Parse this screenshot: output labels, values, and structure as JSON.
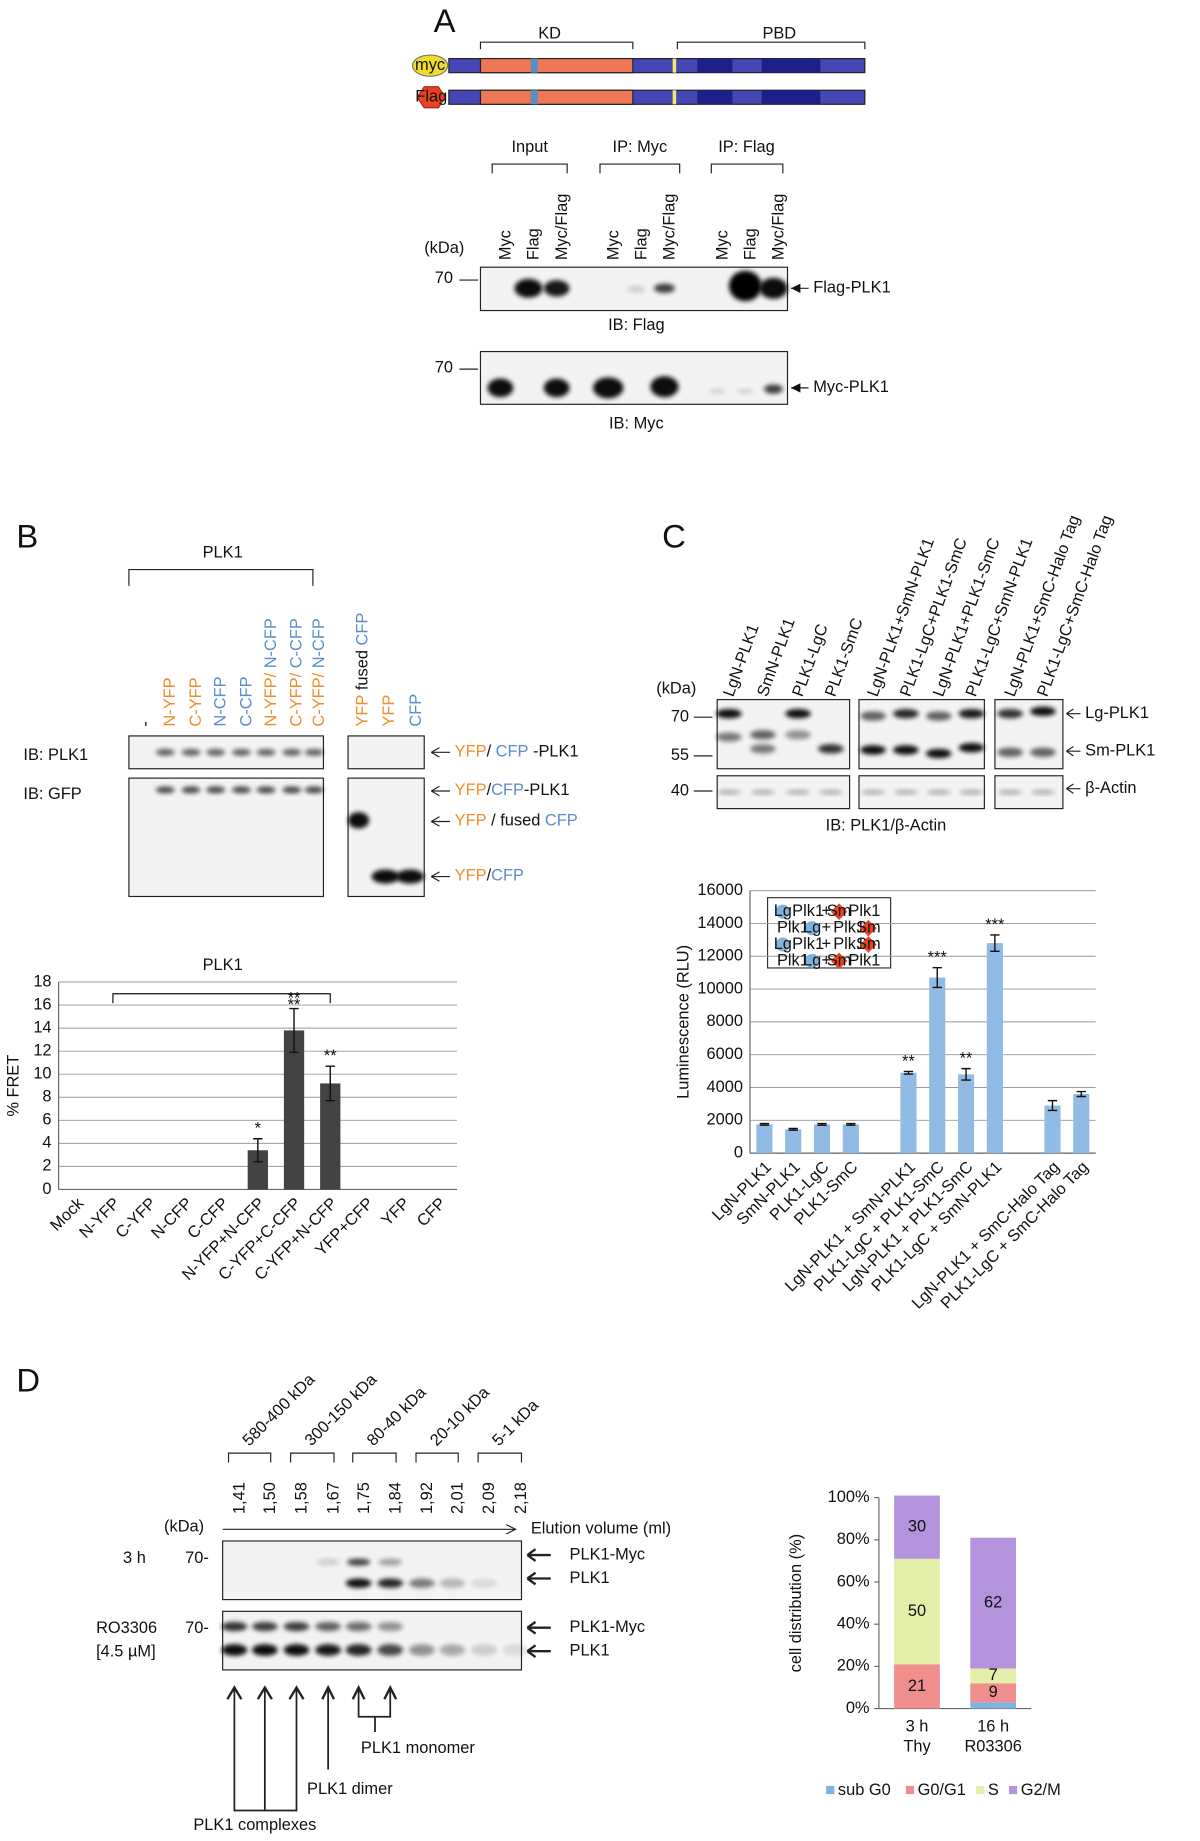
{
  "panel_a": {
    "label": "A",
    "domains": {
      "kd": "KD",
      "pbd": "PBD"
    },
    "tags": [
      "myc",
      "Flag"
    ],
    "groups": [
      "Input",
      "IP: Myc",
      "IP: Flag"
    ],
    "lanes": [
      "Myc",
      "Flag",
      "Myc/Flag",
      "Myc",
      "Flag",
      "Myc/Flag",
      "Myc",
      "Flag",
      "Myc/Flag"
    ],
    "kda": "(kDa)",
    "markers": [
      "70",
      "70"
    ],
    "bands": [
      "Flag-PLK1",
      "Myc-PLK1"
    ],
    "blots": [
      "IB: Flag",
      "IB: Myc"
    ]
  },
  "panel_b": {
    "label": "B",
    "group": "PLK1",
    "lanes": [
      [
        "-"
      ],
      [
        "N-YFP"
      ],
      [
        "C-YFP"
      ],
      [
        "N-CFP"
      ],
      [
        "C-CFP"
      ],
      [
        "N-YFP/",
        " N-CFP"
      ],
      [
        "C-YFP/",
        " C-CFP"
      ],
      [
        "C-YFP/",
        " N-CFP"
      ]
    ],
    "control_lanes": [
      [
        "YFP",
        " fused ",
        "CFP"
      ],
      [
        "YFP"
      ],
      [
        "CFP"
      ]
    ],
    "blots": [
      "IB: PLK1",
      "IB: GFP"
    ],
    "bands": [
      [
        "YFP",
        "/",
        " CFP",
        " -PLK1"
      ],
      [
        "YFP",
        "/",
        "CFP",
        "-PLK1"
      ],
      [
        "YFP",
        " / ",
        "fused ",
        "CFP"
      ],
      [
        "YFP",
        "/",
        "CFP"
      ]
    ]
  },
  "panel_c": {
    "label": "C",
    "lanes": [
      "LgN-PLK1",
      "SmN-PLK1",
      "PLK1-LgC",
      "PLK1-SmC",
      "LgN-PLK1+SmN-PLK1",
      "PLK1-LgC+PLK1-SmC",
      "LgN-PLK1+PLK1-SmC",
      "PLK1-LgC+SmN-PLK1",
      "LgN-PLK1+SmC-Halo Tag",
      "PLK1-LgC+SmC-Halo Tag"
    ],
    "kda": "(kDa)",
    "markers": [
      "70",
      "55",
      "40"
    ],
    "bands": [
      "Lg-PLK1",
      "Sm-PLK1",
      "β-Actin"
    ],
    "blot": "IB: PLK1/β-Actin",
    "inset": [
      [
        "Lg",
        "Plk1",
        "+",
        "Sm",
        "Plk1"
      ],
      [
        "Plk1",
        "Lg",
        "+",
        "Plk1",
        "Sm"
      ],
      [
        "Lg",
        "Plk1",
        "+",
        "Plk1",
        "Sm"
      ],
      [
        "Plk1",
        "Lg",
        "+",
        "Sm",
        "Plk1"
      ]
    ]
  },
  "panel_d": {
    "label": "D",
    "ranges": [
      "580-400 kDa",
      "300-150 kDa",
      "80-40 kDa",
      "20-10 kDa",
      "5-1 kDa"
    ],
    "fractions": [
      "1,41",
      "1,50",
      "1,58",
      "1,67",
      "1,75",
      "1,84",
      "1,92",
      "2,01",
      "2,09",
      "2,18"
    ],
    "kda": "(kDa)",
    "axis": "Elution volume (ml)",
    "rows": [
      [
        "3 h"
      ],
      [
        "RO3306",
        "[4.5 µM]"
      ]
    ],
    "markers": [
      "70-",
      "70-"
    ],
    "bands": [
      "PLK1-Myc",
      "PLK1",
      "PLK1-Myc",
      "PLK1"
    ],
    "annotations": [
      "PLK1 monomer",
      "PLK1 dimer",
      "PLK1 complexes"
    ]
  },
  "chart_data": [
    {
      "type": "bar",
      "title": "PLK1",
      "ylabel": "% FRET",
      "categories": [
        "Mock",
        "N-YFP",
        "C-YFP",
        "N-CFP",
        "C-CFP",
        "N-YFP+N-CFP",
        "C-YFP+C-CFP",
        "C-YFP+N-CFP",
        "YFP+CFP",
        "YFP",
        "CFP"
      ],
      "values": [
        0,
        0,
        0,
        0,
        0,
        3.4,
        13.8,
        9.2,
        0,
        0,
        0
      ],
      "errors": [
        0,
        0,
        0,
        0,
        0,
        1.0,
        1.9,
        1.5,
        0,
        0,
        0
      ],
      "significance": [
        null,
        null,
        null,
        null,
        null,
        "*",
        "**",
        "**",
        null,
        null,
        null
      ],
      "bracket_label": "**",
      "color": "#434343",
      "ylim": [
        0,
        18
      ],
      "yticks": [
        0,
        2,
        4,
        6,
        8,
        10,
        12,
        14,
        16,
        18
      ],
      "grid": true
    },
    {
      "type": "bar",
      "ylabel": "Luminescence (RLU)",
      "categories": [
        "LgN-PLK1",
        "SmN-PLK1",
        "PLK1-LgC",
        "PLK1-SmC",
        null,
        "LgN-PLK1 + SmN-PLK1",
        "PLK1-LgC + PLK1-SmC",
        "LgN-PLK1 + PLK1-SmC",
        "PLK1-LgC + SmN-PLK1",
        null,
        "LgN-PLK1 + SmC-Halo Tag",
        "PLK1-LgC + SmC-Halo Tag"
      ],
      "values": [
        1750,
        1450,
        1750,
        1750,
        null,
        4900,
        10700,
        4800,
        12800,
        null,
        2900,
        3600
      ],
      "errors": [
        50,
        50,
        50,
        50,
        null,
        80,
        600,
        350,
        500,
        null,
        300,
        150
      ],
      "significance": [
        null,
        null,
        null,
        null,
        null,
        "**",
        "***",
        "**",
        "***",
        null,
        null,
        null
      ],
      "color": "#8fbbe4",
      "ylim": [
        0,
        16000
      ],
      "yticks": [
        0,
        2000,
        4000,
        6000,
        8000,
        10000,
        12000,
        14000,
        16000
      ],
      "grid": true
    },
    {
      "type": "stacked_bar",
      "ylabel": "cell distribution (%)",
      "categories": [
        [
          "3 h",
          "Thy"
        ],
        [
          "16 h",
          "R03306"
        ]
      ],
      "series": [
        {
          "name": "sub G0",
          "color": "#7fb2dd",
          "values": [
            0,
            3
          ]
        },
        {
          "name": "G0/G1",
          "color": "#f08d8d",
          "values": [
            21,
            9
          ]
        },
        {
          "name": "S",
          "color": "#e3eea8",
          "values": [
            50,
            7
          ]
        },
        {
          "name": "G2/M",
          "color": "#b493dc",
          "values": [
            30,
            62
          ]
        }
      ],
      "ylim": [
        0,
        100
      ],
      "yticks": [
        {
          "value": 0,
          "label": "0%"
        },
        {
          "value": 20,
          "label": "20%"
        },
        {
          "value": 40,
          "label": "40%"
        },
        {
          "value": 60,
          "label": "60%"
        },
        {
          "value": 80,
          "label": "80%"
        },
        {
          "value": 100,
          "label": "100%"
        }
      ],
      "grid": false
    }
  ]
}
